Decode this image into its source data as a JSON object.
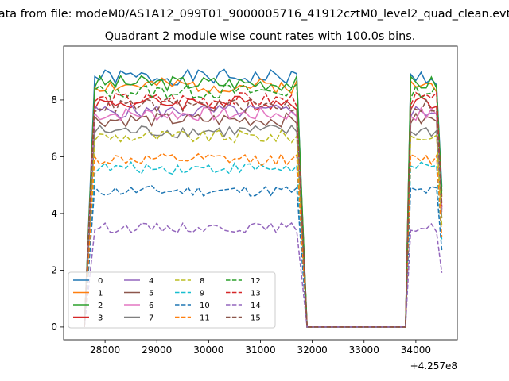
{
  "chart_data": {
    "type": "line",
    "suptitle": "ata from file: modeM0/AS1A12_099T01_9000005716_41912cztM0_level2_quad_clean.evt",
    "title": "Quadrant 2 module wise count rates with 100.0s bins.",
    "xlabel": "",
    "ylabel": "",
    "offset_text": "+4.257e8",
    "xlim": [
      27200,
      34800
    ],
    "ylim": [
      -0.45,
      9.9
    ],
    "x_ticks": [
      28000,
      29000,
      30000,
      31000,
      32000,
      33000,
      34000
    ],
    "y_ticks": [
      0,
      2,
      4,
      6,
      8
    ],
    "x_tick_labels": [
      "28000",
      "29000",
      "30000",
      "31000",
      "32000",
      "33000",
      "34000"
    ],
    "y_tick_labels": [
      "0",
      "2",
      "4",
      "6",
      "8"
    ],
    "grid": false,
    "legend_position": "lower-left",
    "legend_ncol": 4,
    "segment_1": {
      "start": 27600,
      "first_full": 27800,
      "end": 31700
    },
    "segment_2": {
      "start": 33800,
      "first_full": 33900,
      "end": 34500
    },
    "bin_width": 100,
    "series": [
      {
        "name": "0",
        "color": "#1f77b4",
        "dash": "solid",
        "level": 8.8
      },
      {
        "name": "1",
        "color": "#ff7f0e",
        "dash": "solid",
        "level": 8.5
      },
      {
        "name": "2",
        "color": "#2ca02c",
        "dash": "solid",
        "level": 8.6
      },
      {
        "name": "3",
        "color": "#d62728",
        "dash": "solid",
        "level": 7.9
      },
      {
        "name": "4",
        "color": "#9467bd",
        "dash": "solid",
        "level": 7.6
      },
      {
        "name": "5",
        "color": "#8c564b",
        "dash": "solid",
        "level": 7.3
      },
      {
        "name": "6",
        "color": "#e377c2",
        "dash": "solid",
        "level": 7.5
      },
      {
        "name": "7",
        "color": "#7f7f7f",
        "dash": "solid",
        "level": 6.9
      },
      {
        "name": "8",
        "color": "#bcbd22",
        "dash": "dashed",
        "level": 6.7
      },
      {
        "name": "9",
        "color": "#17becf",
        "dash": "dashed",
        "level": 5.6
      },
      {
        "name": "10",
        "color": "#1f77b4",
        "dash": "dashed",
        "level": 4.8
      },
      {
        "name": "11",
        "color": "#ff7f0e",
        "dash": "dashed",
        "level": 5.9
      },
      {
        "name": "12",
        "color": "#2ca02c",
        "dash": "dashed",
        "level": 8.3
      },
      {
        "name": "13",
        "color": "#d62728",
        "dash": "dashed",
        "level": 8.0
      },
      {
        "name": "14",
        "color": "#9467bd",
        "dash": "dashed",
        "level": 3.5
      },
      {
        "name": "15",
        "color": "#8c564b",
        "dash": "dashed",
        "level": 7.8
      }
    ]
  }
}
